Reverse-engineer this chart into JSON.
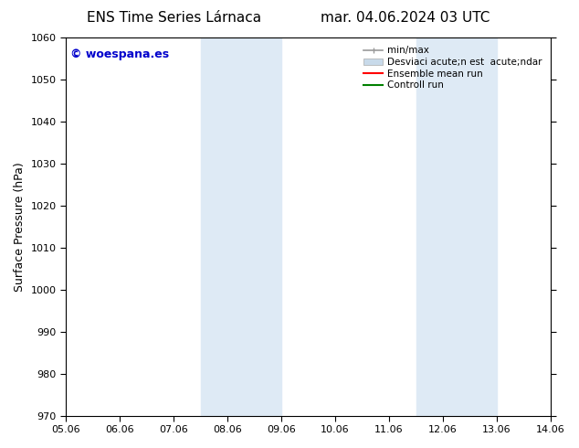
{
  "title_left": "ENS Time Series Lárnaca",
  "title_right": "mar. 04.06.2024 03 UTC",
  "ylabel": "Surface Pressure (hPa)",
  "watermark": "© woespana.es",
  "ylim": [
    970,
    1060
  ],
  "yticks": [
    970,
    980,
    990,
    1000,
    1010,
    1020,
    1030,
    1040,
    1050,
    1060
  ],
  "xtick_labels": [
    "05.06",
    "06.06",
    "07.06",
    "08.06",
    "09.06",
    "10.06",
    "11.06",
    "12.06",
    "13.06",
    "14.06"
  ],
  "xtick_positions": [
    0,
    1,
    2,
    3,
    4,
    5,
    6,
    7,
    8,
    9
  ],
  "shaded_regions": [
    {
      "x_start": 2.5,
      "x_end": 4.0
    },
    {
      "x_start": 6.5,
      "x_end": 8.0
    }
  ],
  "shaded_color": "#deeaf5",
  "bg_color": "#ffffff",
  "watermark_color": "#0000cc",
  "title_fontsize": 11,
  "label_fontsize": 9,
  "tick_fontsize": 8,
  "border_color": "#000000",
  "legend_labels": [
    "min/max",
    "Desviaci acute;n est  acute;ndar",
    "Ensemble mean run",
    "Controll run"
  ],
  "legend_line_colors": [
    "#999999",
    "#c8daea",
    "#ff0000",
    "#008000"
  ]
}
